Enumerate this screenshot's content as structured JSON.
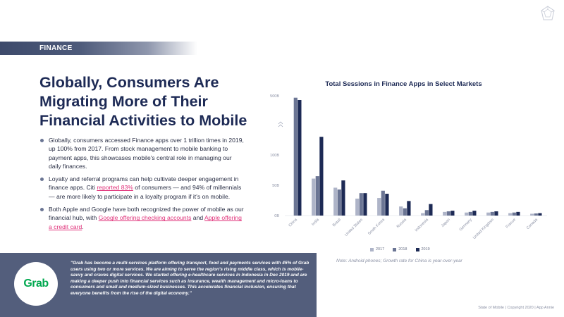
{
  "section": {
    "label": "FINANCE"
  },
  "headline": "Globally, Consumers Are Migrating More of Their Financial Activities to Mobile",
  "bullets": {
    "b1": "Globally, consumers accessed Finance apps over 1 trillion times in 2019, up 100% from 2017. From stock management to mobile banking to payment apps, this showcases mobile's central role in managing our daily finances.",
    "b2_pre": "Loyalty and referral programs can help cultivate deeper engagement in finance apps. Citi ",
    "b2_link": "reported 83%",
    "b2_post": " of consumers — and 94% of millennials — are more likely to participate in a loyalty program if it's on mobile.",
    "b3_pre": "Both Apple and Google have both recognized the power of mobile as our financial hub, with ",
    "b3_link1": "Google offering checking accounts",
    "b3_mid": " and ",
    "b3_link2": "Apple offering a credit card",
    "b3_post": "."
  },
  "quote": {
    "logo_text": "Grab",
    "text": "\"Grab has become a multi-services platform offering transport, food and payments services with 45% of Grab users using two or more services. We are aiming to serve the region's rising middle class, which is mobile-savvy and craves digital services. We started offering e-healthcare services in Indonesia in Dec 2019 and are making a deeper push into financial services such as insurance, wealth management and micro-loans to consumers and small and medium-sized businesses. This accelerates financial inclusion, ensuring that everyone benefits from the rise of the digital economy.\""
  },
  "note": "Note: Android phones; Growth rate for China is year-over-year",
  "footer": "State of Mobile  |  Copyright 2020  |  App Annie",
  "colors": {
    "y2017": "#aeb4c8",
    "y2018": "#6b7594",
    "y2019": "#1d2a55"
  },
  "chart_data": {
    "type": "bar",
    "title": "Total Sessions in Finance Apps in Select Markets",
    "categories": [
      "China",
      "India",
      "Brazil",
      "United States",
      "South Korea",
      "Russia",
      "Indonesia",
      "Japan",
      "Germany",
      "United Kingdom",
      "France",
      "Canada"
    ],
    "series": [
      {
        "name": "2017",
        "values": [
          null,
          61,
          46,
          28,
          29,
          15,
          4,
          6,
          5,
          5,
          4,
          3
        ]
      },
      {
        "name": "2018",
        "values": [
          482,
          65,
          43,
          37,
          41,
          12,
          9,
          7,
          6,
          6,
          5,
          3.5
        ]
      },
      {
        "name": "2019",
        "values": [
          460,
          112,
          58,
          37,
          36,
          24,
          19,
          8,
          8,
          7,
          6,
          4
        ]
      }
    ],
    "yticks": [
      "0B",
      "50B",
      "100B",
      "500B"
    ],
    "ylim": [
      0,
      500
    ],
    "axis_break": true,
    "legend_position": "bottom",
    "xlabel": "",
    "ylabel": ""
  }
}
